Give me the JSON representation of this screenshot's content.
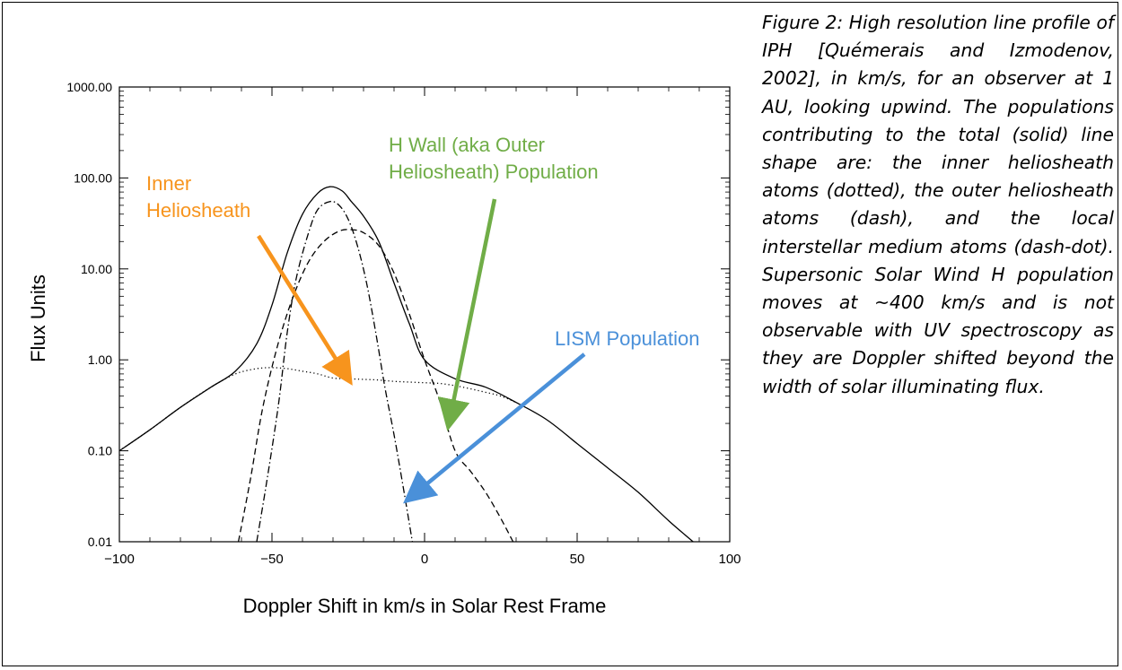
{
  "caption": "Figure 2: High resolution line profile of IPH [Quémerais and Izmodenov, 2002], in km/s, for an observer at 1 AU, looking upwind. The populations contributing to the total (solid) line shape are: the inner heliosheath atoms (dotted), the outer heliosheath atoms (dash), and the local interstellar medium atoms (dash-dot). Supersonic Solar Wind H population moves at ~400 km/s and is not observable with UV spectroscopy as they are Doppler shifted beyond the width of solar illuminating flux.",
  "chart_data": {
    "type": "line",
    "xlabel": "Doppler Shift in km/s in Solar Rest Frame",
    "ylabel": "Flux Units",
    "xlim": [
      -100,
      100
    ],
    "ylim": [
      0.01,
      1000
    ],
    "yscale": "log",
    "xticks": [
      -100,
      -50,
      0,
      50,
      100
    ],
    "xtick_labels": [
      "−100",
      "−50",
      "0",
      "50",
      "100"
    ],
    "yticks": [
      0.01,
      0.1,
      1,
      10,
      100,
      1000
    ],
    "ytick_labels": [
      "0.01",
      "0.10",
      "1.00",
      "10.00",
      "100.00",
      "1000.00"
    ],
    "grid": false,
    "series": [
      {
        "style": "solid",
        "color": "#000000",
        "points": [
          [
            -100,
            0.1
          ],
          [
            -90,
            0.17
          ],
          [
            -80,
            0.3
          ],
          [
            -70,
            0.5
          ],
          [
            -62,
            0.75
          ],
          [
            -55,
            1.5
          ],
          [
            -50,
            4
          ],
          [
            -45,
            15
          ],
          [
            -40,
            40
          ],
          [
            -35,
            68
          ],
          [
            -31,
            80
          ],
          [
            -27,
            72
          ],
          [
            -24,
            55
          ],
          [
            -20,
            38
          ],
          [
            -15,
            20
          ],
          [
            -10,
            7
          ],
          [
            -5,
            2.5
          ],
          [
            0,
            1.0
          ],
          [
            10,
            0.62
          ],
          [
            20,
            0.5
          ],
          [
            30,
            0.34
          ],
          [
            40,
            0.22
          ],
          [
            50,
            0.12
          ],
          [
            60,
            0.065
          ],
          [
            70,
            0.035
          ],
          [
            80,
            0.017
          ],
          [
            88,
            0.01
          ]
        ]
      },
      {
        "style": "dotted",
        "color": "#000000",
        "points": [
          [
            -100,
            0.1
          ],
          [
            -90,
            0.17
          ],
          [
            -80,
            0.3
          ],
          [
            -70,
            0.5
          ],
          [
            -62,
            0.7
          ],
          [
            -55,
            0.8
          ],
          [
            -50,
            0.82
          ],
          [
            -45,
            0.8
          ],
          [
            -40,
            0.75
          ],
          [
            -35,
            0.7
          ],
          [
            -30,
            0.63
          ],
          [
            -25,
            0.62
          ],
          [
            -20,
            0.61
          ],
          [
            -15,
            0.6
          ],
          [
            -10,
            0.58
          ],
          [
            -5,
            0.57
          ],
          [
            0,
            0.56
          ],
          [
            5,
            0.55
          ],
          [
            10,
            0.52
          ],
          [
            15,
            0.48
          ],
          [
            20,
            0.44
          ],
          [
            25,
            0.4
          ],
          [
            30,
            0.34
          ]
        ]
      },
      {
        "style": "dashed",
        "color": "#000000",
        "points": [
          [
            -61,
            0.01
          ],
          [
            -57,
            0.05
          ],
          [
            -53,
            0.3
          ],
          [
            -48,
            1.5
          ],
          [
            -43,
            5
          ],
          [
            -38,
            12
          ],
          [
            -33,
            20
          ],
          [
            -28,
            26
          ],
          [
            -24,
            27
          ],
          [
            -20,
            25
          ],
          [
            -15,
            18
          ],
          [
            -10,
            9
          ],
          [
            -5,
            3.2
          ],
          [
            0,
            1.0
          ],
          [
            5,
            0.35
          ],
          [
            10,
            0.1
          ],
          [
            15,
            0.06
          ],
          [
            20,
            0.035
          ],
          [
            25,
            0.018
          ],
          [
            29,
            0.01
          ]
        ]
      },
      {
        "style": "dashdot",
        "color": "#000000",
        "points": [
          [
            -55,
            0.01
          ],
          [
            -52,
            0.04
          ],
          [
            -48,
            0.3
          ],
          [
            -45,
            2
          ],
          [
            -42,
            8
          ],
          [
            -38,
            25
          ],
          [
            -35,
            45
          ],
          [
            -31,
            55
          ],
          [
            -28,
            50
          ],
          [
            -25,
            35
          ],
          [
            -22,
            18
          ],
          [
            -19,
            7
          ],
          [
            -16,
            2
          ],
          [
            -13,
            0.5
          ],
          [
            -10,
            0.15
          ],
          [
            -7,
            0.04
          ],
          [
            -4,
            0.01
          ]
        ]
      }
    ],
    "annotations": [
      {
        "id": "inner",
        "lines": [
          "Inner",
          "Heliosheath"
        ],
        "color": "#f7941d",
        "arrow_to": [
          -25,
          0.62
        ]
      },
      {
        "id": "hwall",
        "lines": [
          "H Wall (aka Outer",
          "Heliosheath) Population"
        ],
        "color": "#70ad47",
        "arrow_to": [
          8,
          0.2
        ]
      },
      {
        "id": "lism",
        "lines": [
          "LISM Population"
        ],
        "color": "#4a90d9",
        "arrow_to": [
          -5,
          0.03
        ]
      }
    ]
  }
}
